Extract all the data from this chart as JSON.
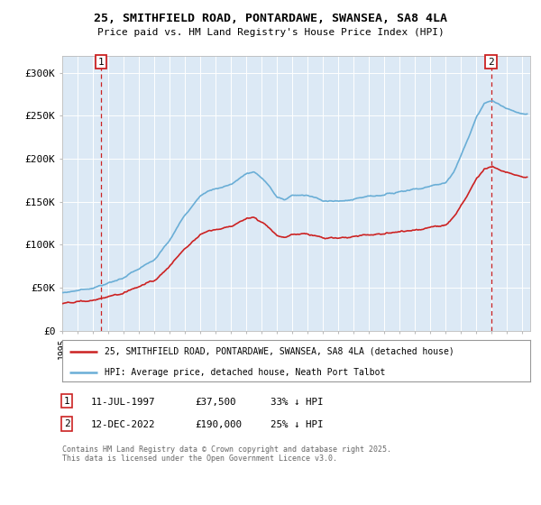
{
  "title_line1": "25, SMITHFIELD ROAD, PONTARDAWE, SWANSEA, SA8 4LA",
  "title_line2": "Price paid vs. HM Land Registry's House Price Index (HPI)",
  "ylim": [
    0,
    320000
  ],
  "yticks": [
    0,
    50000,
    100000,
    150000,
    200000,
    250000,
    300000
  ],
  "ytick_labels": [
    "£0",
    "£50K",
    "£100K",
    "£150K",
    "£200K",
    "£250K",
    "£300K"
  ],
  "plot_bg_color": "#dce9f5",
  "hpi_color": "#6aaed6",
  "price_color": "#cc2222",
  "marker1_x": 1997.53,
  "marker2_x": 2022.95,
  "legend_line1": "25, SMITHFIELD ROAD, PONTARDAWE, SWANSEA, SA8 4LA (detached house)",
  "legend_line2": "HPI: Average price, detached house, Neath Port Talbot",
  "ann1_date": "11-JUL-1997",
  "ann1_price": "£37,500",
  "ann1_hpi": "33% ↓ HPI",
  "ann2_date": "12-DEC-2022",
  "ann2_price": "£190,000",
  "ann2_hpi": "25% ↓ HPI",
  "footnote": "Contains HM Land Registry data © Crown copyright and database right 2025.\nThis data is licensed under the Open Government Licence v3.0.",
  "xmin": 1995.0,
  "xmax": 2025.5
}
